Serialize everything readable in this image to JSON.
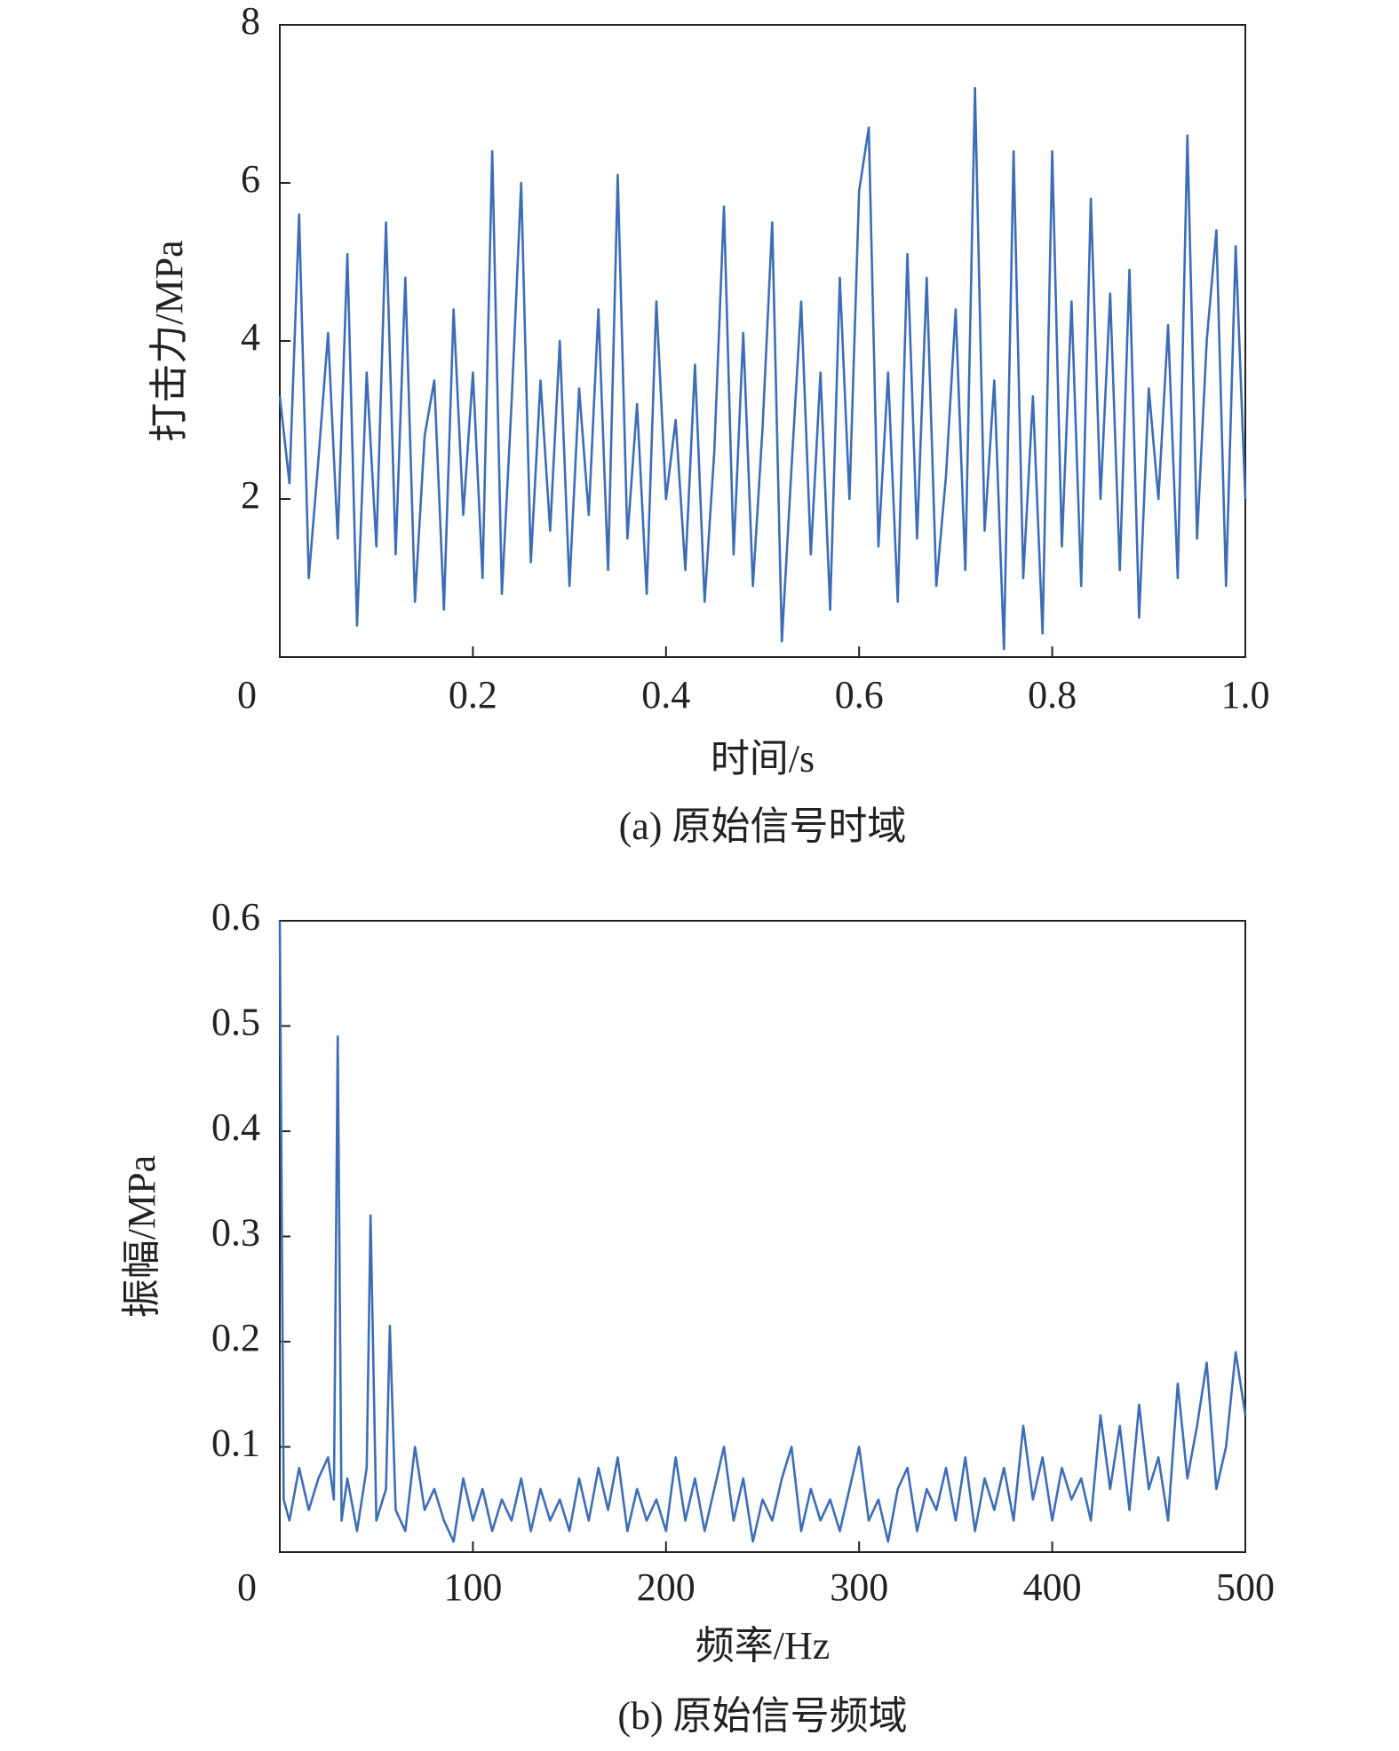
{
  "chart_data": [
    {
      "type": "line",
      "y_label": "打击力/MPa",
      "x_label": "时间/s",
      "caption": "(a) 原始信号时域",
      "xlim": [
        0,
        1
      ],
      "xticks": [
        0,
        0.2,
        0.4,
        0.6,
        0.8,
        {
          "value": 1,
          "label": "1.0"
        }
      ],
      "ylim": [
        0,
        8
      ],
      "yticks": [
        2,
        4,
        6,
        8
      ],
      "series": [
        {
          "name": "打击力",
          "color": "#3c6db5",
          "x": [
            0,
            0.01,
            0.02,
            0.03,
            0.04,
            0.05,
            0.06,
            0.07,
            0.08,
            0.09,
            0.1,
            0.11,
            0.12,
            0.13,
            0.14,
            0.15,
            0.16,
            0.17,
            0.18,
            0.19,
            0.2,
            0.21,
            0.22,
            0.23,
            0.24,
            0.25,
            0.26,
            0.27,
            0.28,
            0.29,
            0.3,
            0.31,
            0.32,
            0.33,
            0.34,
            0.35,
            0.36,
            0.37,
            0.38,
            0.39,
            0.4,
            0.41,
            0.42,
            0.43,
            0.44,
            0.45,
            0.46,
            0.47,
            0.48,
            0.49,
            0.5,
            0.51,
            0.52,
            0.53,
            0.54,
            0.55,
            0.56,
            0.57,
            0.58,
            0.59,
            0.6,
            0.61,
            0.62,
            0.63,
            0.64,
            0.65,
            0.66,
            0.67,
            0.68,
            0.69,
            0.7,
            0.71,
            0.72,
            0.73,
            0.74,
            0.75,
            0.76,
            0.77,
            0.78,
            0.79,
            0.8,
            0.81,
            0.82,
            0.83,
            0.84,
            0.85,
            0.86,
            0.87,
            0.88,
            0.89,
            0.9,
            0.91,
            0.92,
            0.93,
            0.94,
            0.95,
            0.96,
            0.97,
            0.98,
            0.99,
            1
          ],
          "values": [
            3.3,
            2.2,
            5.6,
            1.0,
            2.5,
            4.1,
            1.5,
            5.1,
            0.4,
            3.6,
            1.4,
            5.5,
            1.3,
            4.8,
            0.7,
            2.8,
            3.5,
            0.6,
            4.4,
            1.8,
            3.6,
            1.0,
            6.4,
            0.8,
            3.2,
            6.0,
            1.2,
            3.5,
            1.6,
            4.0,
            0.9,
            3.4,
            1.8,
            4.4,
            1.1,
            6.1,
            1.5,
            3.2,
            0.8,
            4.5,
            2.0,
            3.0,
            1.1,
            3.7,
            0.7,
            2.6,
            5.7,
            1.3,
            4.1,
            0.9,
            2.9,
            5.5,
            0.2,
            2.4,
            4.5,
            1.3,
            3.6,
            0.6,
            4.8,
            2.0,
            5.9,
            6.7,
            1.4,
            3.6,
            0.7,
            5.1,
            1.5,
            4.8,
            0.9,
            2.3,
            4.4,
            1.1,
            7.2,
            1.6,
            3.5,
            0.1,
            6.4,
            1.0,
            3.3,
            0.3,
            6.4,
            1.4,
            4.5,
            0.9,
            5.8,
            2.0,
            4.6,
            1.1,
            4.9,
            0.5,
            3.4,
            2.0,
            4.2,
            1.0,
            6.6,
            1.5,
            4.0,
            5.4,
            0.9,
            5.2,
            2.0
          ]
        }
      ]
    },
    {
      "type": "line",
      "y_label": "振幅/MPa",
      "x_label": "频率/Hz",
      "caption": "(b) 原始信号频域",
      "xlim": [
        0,
        500
      ],
      "xticks": [
        0,
        100,
        200,
        300,
        400,
        500
      ],
      "ylim": [
        0,
        0.6
      ],
      "yticks": [
        0.1,
        0.2,
        0.3,
        0.4,
        0.5,
        0.6
      ],
      "series": [
        {
          "name": "振幅",
          "color": "#3c6db5",
          "x": [
            0,
            2,
            5,
            10,
            15,
            20,
            25,
            28,
            30,
            32,
            35,
            40,
            45,
            47,
            50,
            55,
            57,
            60,
            65,
            70,
            75,
            80,
            85,
            90,
            95,
            100,
            105,
            110,
            115,
            120,
            125,
            130,
            135,
            140,
            145,
            150,
            155,
            160,
            165,
            170,
            175,
            180,
            185,
            190,
            195,
            200,
            205,
            210,
            215,
            220,
            225,
            230,
            235,
            240,
            245,
            250,
            255,
            260,
            265,
            270,
            275,
            280,
            285,
            290,
            295,
            300,
            305,
            310,
            315,
            320,
            325,
            330,
            335,
            340,
            345,
            350,
            355,
            360,
            365,
            370,
            375,
            380,
            385,
            390,
            395,
            400,
            405,
            410,
            415,
            420,
            425,
            430,
            435,
            440,
            445,
            450,
            455,
            460,
            465,
            470,
            475,
            480,
            485,
            490,
            495,
            500
          ],
          "values": [
            0.6,
            0.05,
            0.03,
            0.08,
            0.04,
            0.07,
            0.09,
            0.05,
            0.49,
            0.03,
            0.07,
            0.02,
            0.08,
            0.32,
            0.03,
            0.06,
            0.215,
            0.04,
            0.02,
            0.1,
            0.04,
            0.06,
            0.03,
            0.01,
            0.07,
            0.03,
            0.06,
            0.02,
            0.05,
            0.03,
            0.07,
            0.02,
            0.06,
            0.03,
            0.05,
            0.02,
            0.07,
            0.03,
            0.08,
            0.04,
            0.09,
            0.02,
            0.06,
            0.03,
            0.05,
            0.02,
            0.09,
            0.03,
            0.07,
            0.02,
            0.06,
            0.1,
            0.03,
            0.07,
            0.01,
            0.05,
            0.03,
            0.07,
            0.1,
            0.02,
            0.06,
            0.03,
            0.05,
            0.02,
            0.06,
            0.1,
            0.03,
            0.05,
            0.01,
            0.06,
            0.08,
            0.02,
            0.06,
            0.04,
            0.08,
            0.03,
            0.09,
            0.02,
            0.07,
            0.04,
            0.08,
            0.03,
            0.12,
            0.05,
            0.09,
            0.03,
            0.08,
            0.05,
            0.07,
            0.03,
            0.13,
            0.06,
            0.12,
            0.04,
            0.14,
            0.06,
            0.09,
            0.03,
            0.16,
            0.07,
            0.12,
            0.18,
            0.06,
            0.1,
            0.19,
            0.13
          ]
        }
      ]
    }
  ]
}
